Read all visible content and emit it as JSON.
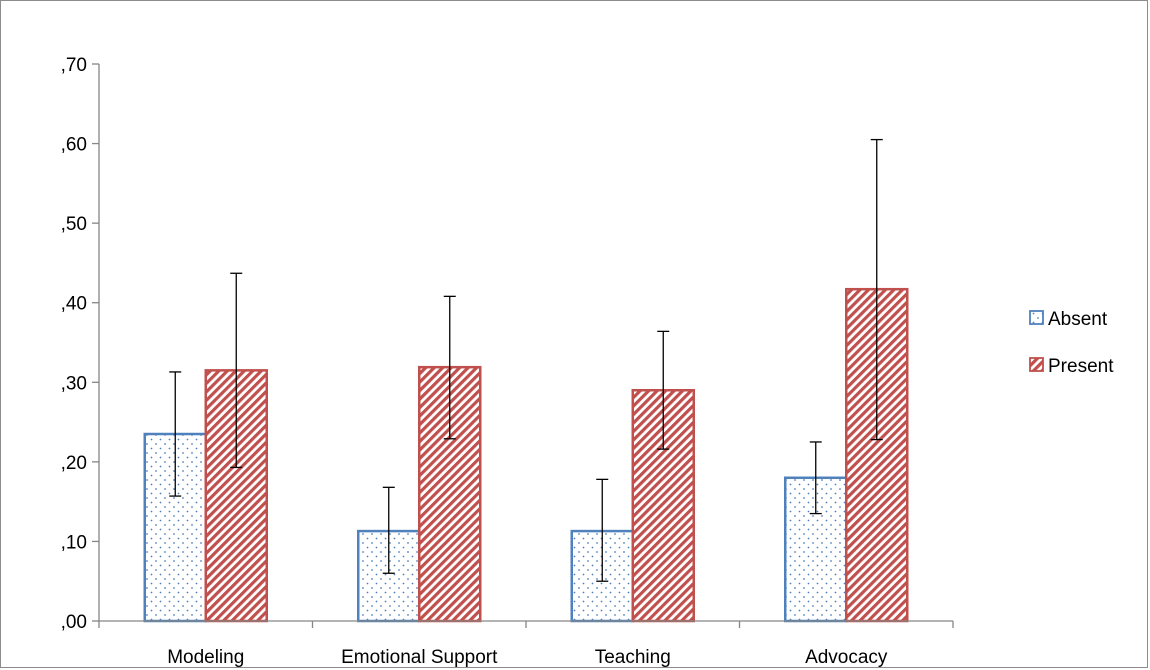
{
  "chart_data": {
    "type": "bar",
    "categories": [
      "Modeling",
      "Emotional Support",
      "Teaching",
      "Advocacy"
    ],
    "series": [
      {
        "name": "Absent",
        "values": [
          0.235,
          0.113,
          0.113,
          0.18
        ],
        "error_low": [
          0.157,
          0.06,
          0.05,
          0.135
        ],
        "error_high": [
          0.313,
          0.168,
          0.178,
          0.225
        ],
        "color": "#4f81bd",
        "pattern": "dots"
      },
      {
        "name": "Present",
        "values": [
          0.315,
          0.319,
          0.29,
          0.417
        ],
        "error_low": [
          0.193,
          0.229,
          0.216,
          0.228
        ],
        "error_high": [
          0.437,
          0.408,
          0.364,
          0.605
        ],
        "color": "#c0504d",
        "pattern": "diagonal-hatch"
      }
    ],
    "yticks": [
      ",00",
      ",10",
      ",20",
      ",30",
      ",40",
      ",50",
      ",60",
      ",70"
    ],
    "ylim": [
      0,
      0.7
    ],
    "legend_position": "right",
    "grid": false,
    "title": "",
    "xlabel": "",
    "ylabel": ""
  }
}
